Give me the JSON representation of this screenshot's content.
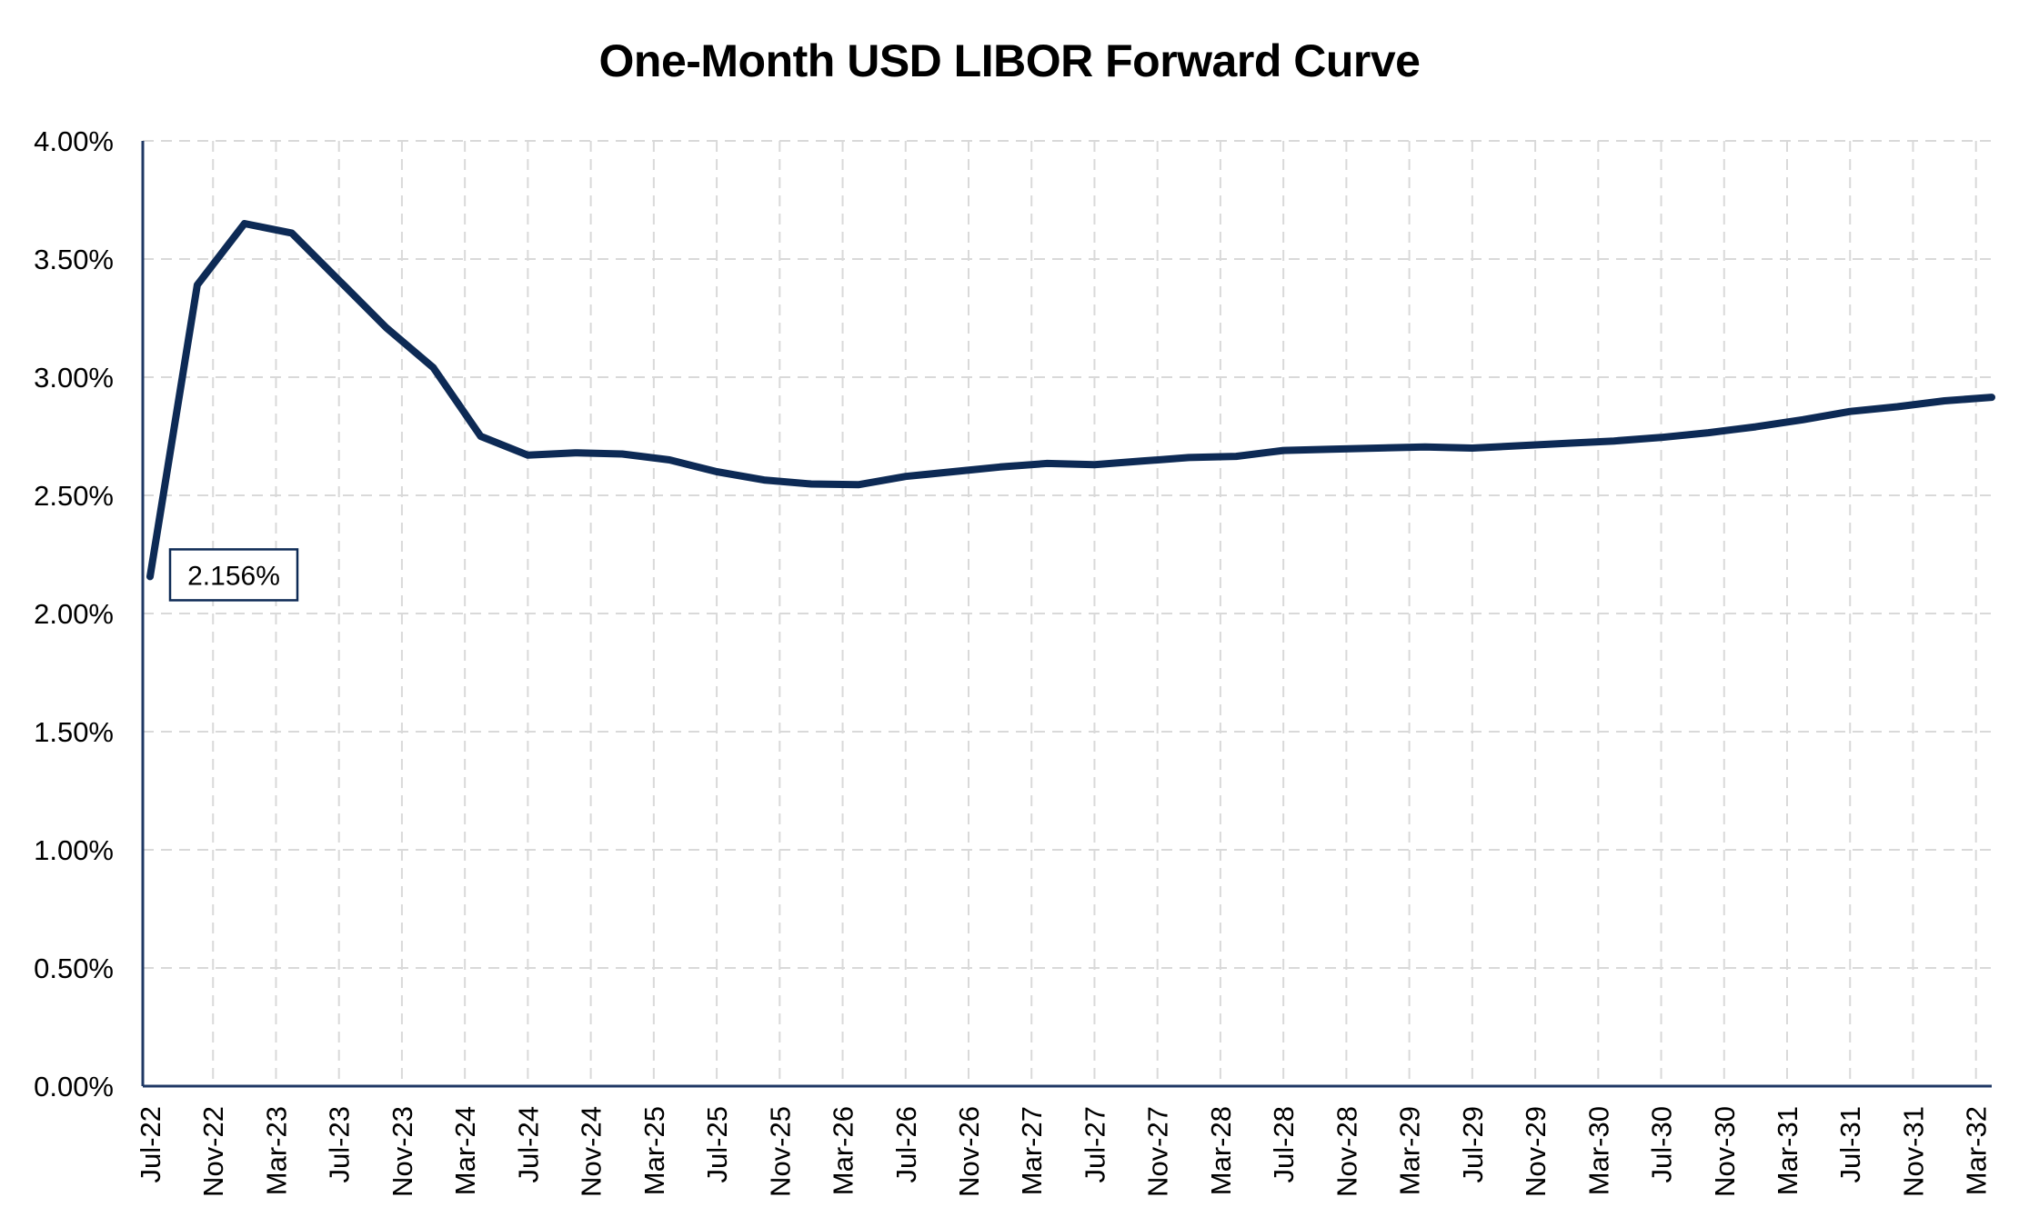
{
  "chart_data": {
    "type": "line",
    "title": "One-Month USD LIBOR Forward Curve",
    "xlabel": "",
    "ylabel": "",
    "ylim": [
      0,
      0.04
    ],
    "y_ticks": [
      "0.00%",
      "0.50%",
      "1.00%",
      "1.50%",
      "2.00%",
      "2.50%",
      "3.00%",
      "3.50%",
      "4.00%"
    ],
    "y_tick_values": [
      0,
      0.005,
      0.01,
      0.015,
      0.02,
      0.025,
      0.03,
      0.035,
      0.04
    ],
    "x_ticks": [
      "Jul-22",
      "Nov-22",
      "Mar-23",
      "Jul-23",
      "Nov-23",
      "Mar-24",
      "Jul-24",
      "Nov-24",
      "Mar-25",
      "Jul-25",
      "Nov-25",
      "Mar-26",
      "Jul-26",
      "Nov-26",
      "Mar-27",
      "Jul-27",
      "Nov-27",
      "Mar-28",
      "Jul-28",
      "Nov-28",
      "Mar-29",
      "Jul-29",
      "Nov-29",
      "Mar-30",
      "Jul-30",
      "Nov-30",
      "Mar-31",
      "Jul-31",
      "Nov-31",
      "Mar-32"
    ],
    "grid": true,
    "legend": "none",
    "series": [
      {
        "color": "#0d2a55",
        "points": [
          {
            "x": "Jul-22",
            "y": 0.02156
          },
          {
            "x": "Oct-22",
            "y": 0.0339
          },
          {
            "x": "Jan-23",
            "y": 0.0365
          },
          {
            "x": "Apr-23",
            "y": 0.0361
          },
          {
            "x": "Jul-23",
            "y": 0.0341
          },
          {
            "x": "Oct-23",
            "y": 0.0321
          },
          {
            "x": "Jan-24",
            "y": 0.0304
          },
          {
            "x": "Apr-24",
            "y": 0.0275
          },
          {
            "x": "Jul-24",
            "y": 0.0267
          },
          {
            "x": "Oct-24",
            "y": 0.0268
          },
          {
            "x": "Jan-25",
            "y": 0.02675
          },
          {
            "x": "Apr-25",
            "y": 0.0265
          },
          {
            "x": "Jul-25",
            "y": 0.026
          },
          {
            "x": "Oct-25",
            "y": 0.02565
          },
          {
            "x": "Jan-26",
            "y": 0.02548
          },
          {
            "x": "Apr-26",
            "y": 0.02545
          },
          {
            "x": "Jul-26",
            "y": 0.0258
          },
          {
            "x": "Oct-26",
            "y": 0.026
          },
          {
            "x": "Jan-27",
            "y": 0.0262
          },
          {
            "x": "Apr-27",
            "y": 0.02635
          },
          {
            "x": "Jul-27",
            "y": 0.0263
          },
          {
            "x": "Oct-27",
            "y": 0.02645
          },
          {
            "x": "Jan-28",
            "y": 0.0266
          },
          {
            "x": "Apr-28",
            "y": 0.02665
          },
          {
            "x": "Jul-28",
            "y": 0.0269
          },
          {
            "x": "Oct-28",
            "y": 0.02695
          },
          {
            "x": "Jan-29",
            "y": 0.027
          },
          {
            "x": "Apr-29",
            "y": 0.02705
          },
          {
            "x": "Jul-29",
            "y": 0.027
          },
          {
            "x": "Oct-29",
            "y": 0.0271
          },
          {
            "x": "Jan-30",
            "y": 0.0272
          },
          {
            "x": "Apr-30",
            "y": 0.0273
          },
          {
            "x": "Jul-30",
            "y": 0.02745
          },
          {
            "x": "Oct-30",
            "y": 0.02765
          },
          {
            "x": "Jan-31",
            "y": 0.0279
          },
          {
            "x": "Apr-31",
            "y": 0.0282
          },
          {
            "x": "Jul-31",
            "y": 0.02855
          },
          {
            "x": "Oct-31",
            "y": 0.02875
          },
          {
            "x": "Jan-32",
            "y": 0.029
          },
          {
            "x": "Apr-32",
            "y": 0.02915
          }
        ]
      }
    ],
    "annotations": [
      {
        "text": "2.156%",
        "at_x": "Jul-22",
        "at_y": 0.02156
      }
    ]
  }
}
